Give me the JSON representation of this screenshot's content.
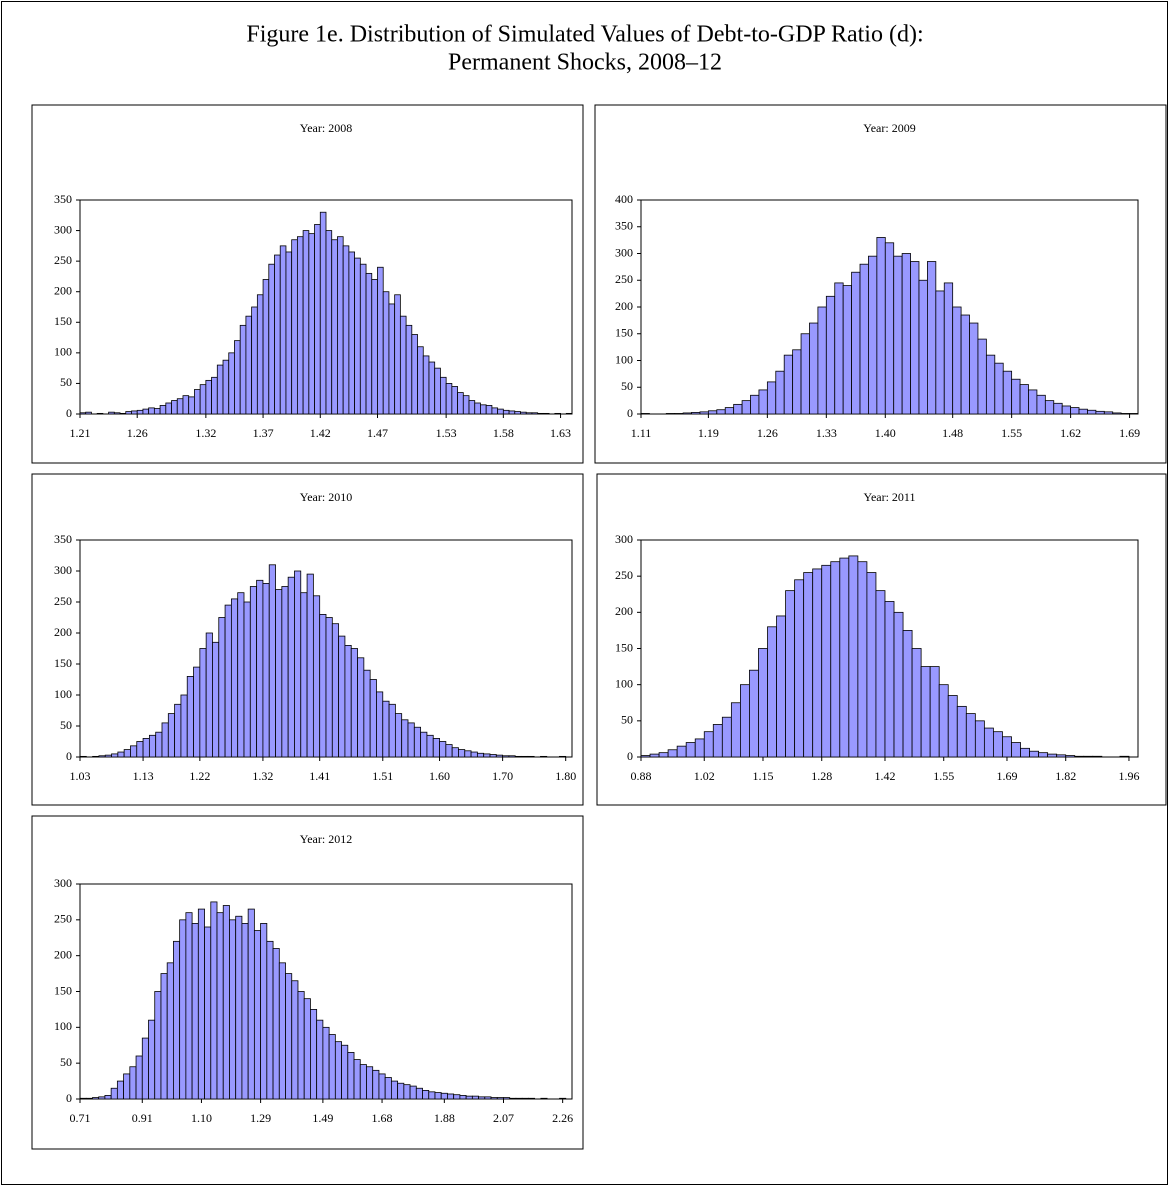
{
  "title": "Figure 1e. Distribution of Simulated Values of Debt-to-GDP Ratio (d):",
  "subtitle": "Permanent Shocks, 2008–12",
  "chart_data": [
    {
      "type": "histogram",
      "title": "Year: 2008",
      "color": "#9999ff",
      "bins": [
        1.21,
        1.215,
        1.22,
        1.225,
        1.23,
        1.235,
        1.24,
        1.245,
        1.25,
        1.255,
        1.26,
        1.265,
        1.27,
        1.275,
        1.28,
        1.285,
        1.29,
        1.295,
        1.3,
        1.305,
        1.31,
        1.315,
        1.32,
        1.325,
        1.33,
        1.335,
        1.34,
        1.345,
        1.35,
        1.355,
        1.36,
        1.365,
        1.37,
        1.375,
        1.38,
        1.385,
        1.39,
        1.395,
        1.4,
        1.405,
        1.41,
        1.415,
        1.42,
        1.425,
        1.43,
        1.435,
        1.44,
        1.445,
        1.45,
        1.455,
        1.46,
        1.465,
        1.47,
        1.475,
        1.48,
        1.485,
        1.49,
        1.495,
        1.5,
        1.505,
        1.51,
        1.515,
        1.52,
        1.525,
        1.53,
        1.535,
        1.54,
        1.545,
        1.55,
        1.555,
        1.56,
        1.565,
        1.57,
        1.575,
        1.58,
        1.585,
        1.59,
        1.595,
        1.6,
        1.605,
        1.61,
        1.615,
        1.62,
        1.625,
        1.63,
        1.635,
        1.64
      ],
      "values": [
        2,
        3,
        0,
        1,
        0,
        3,
        2,
        1,
        4,
        5,
        6,
        8,
        10,
        9,
        14,
        18,
        22,
        25,
        30,
        28,
        40,
        48,
        55,
        60,
        80,
        88,
        100,
        120,
        145,
        160,
        175,
        195,
        220,
        245,
        260,
        275,
        265,
        285,
        290,
        300,
        295,
        310,
        330,
        300,
        285,
        290,
        275,
        265,
        255,
        245,
        230,
        220,
        240,
        200,
        180,
        195,
        160,
        145,
        130,
        110,
        95,
        85,
        75,
        60,
        50,
        45,
        35,
        30,
        22,
        18,
        15,
        14,
        10,
        8,
        6,
        5,
        4,
        3,
        2,
        2,
        1,
        1,
        0,
        1,
        0,
        1
      ],
      "xlim": [
        1.21,
        1.64
      ],
      "xticks": [
        1.21,
        1.26,
        1.32,
        1.37,
        1.42,
        1.47,
        1.53,
        1.58,
        1.63
      ],
      "ylim": [
        0,
        350
      ],
      "yticks": [
        0,
        50,
        100,
        150,
        200,
        250,
        300,
        350
      ]
    },
    {
      "type": "histogram",
      "title": "Year: 2009",
      "color": "#9999ff",
      "bins": [
        1.11,
        1.12,
        1.13,
        1.14,
        1.15,
        1.16,
        1.17,
        1.18,
        1.19,
        1.2,
        1.21,
        1.22,
        1.23,
        1.24,
        1.25,
        1.26,
        1.27,
        1.28,
        1.29,
        1.3,
        1.31,
        1.32,
        1.33,
        1.34,
        1.35,
        1.36,
        1.37,
        1.38,
        1.39,
        1.4,
        1.41,
        1.42,
        1.43,
        1.44,
        1.45,
        1.46,
        1.47,
        1.48,
        1.49,
        1.5,
        1.51,
        1.52,
        1.53,
        1.54,
        1.55,
        1.56,
        1.57,
        1.58,
        1.59,
        1.6,
        1.61,
        1.62,
        1.63,
        1.64,
        1.65,
        1.66,
        1.67,
        1.68,
        1.69,
        1.7
      ],
      "values": [
        1,
        0,
        0,
        1,
        1,
        2,
        3,
        4,
        6,
        8,
        12,
        18,
        25,
        35,
        45,
        60,
        80,
        110,
        120,
        150,
        170,
        200,
        220,
        245,
        240,
        265,
        280,
        295,
        330,
        320,
        295,
        300,
        285,
        250,
        285,
        230,
        245,
        200,
        185,
        170,
        140,
        110,
        95,
        80,
        65,
        55,
        45,
        35,
        25,
        20,
        15,
        12,
        9,
        7,
        5,
        4,
        2,
        1,
        1
      ],
      "xlim": [
        1.11,
        1.7
      ],
      "xticks": [
        1.11,
        1.19,
        1.26,
        1.33,
        {
          "value": 1.4,
          "label": "1.40"
        },
        1.48,
        1.55,
        1.62,
        1.69
      ],
      "ylim": [
        0,
        400
      ],
      "yticks": [
        0,
        50,
        100,
        150,
        200,
        250,
        300,
        350,
        400
      ]
    },
    {
      "type": "histogram",
      "title": "Year: 2010",
      "color": "#9999ff",
      "bins": [
        1.03,
        1.04,
        1.05,
        1.06,
        1.07,
        1.08,
        1.09,
        1.1,
        1.11,
        1.12,
        1.13,
        1.14,
        1.15,
        1.16,
        1.17,
        1.18,
        1.19,
        1.2,
        1.21,
        1.22,
        1.23,
        1.24,
        1.25,
        1.26,
        1.27,
        1.28,
        1.29,
        1.3,
        1.31,
        1.32,
        1.33,
        1.34,
        1.35,
        1.36,
        1.37,
        1.38,
        1.39,
        1.4,
        1.41,
        1.42,
        1.43,
        1.44,
        1.45,
        1.46,
        1.47,
        1.48,
        1.49,
        1.5,
        1.51,
        1.52,
        1.53,
        1.54,
        1.55,
        1.56,
        1.57,
        1.58,
        1.59,
        1.6,
        1.61,
        1.62,
        1.63,
        1.64,
        1.65,
        1.66,
        1.67,
        1.68,
        1.69,
        1.7,
        1.71,
        1.72,
        1.73,
        1.74,
        1.75,
        1.76,
        1.77,
        1.78,
        1.79,
        1.8,
        1.81
      ],
      "values": [
        1,
        0,
        1,
        2,
        3,
        5,
        8,
        12,
        18,
        25,
        30,
        35,
        40,
        55,
        70,
        85,
        100,
        130,
        145,
        175,
        200,
        185,
        225,
        245,
        255,
        265,
        250,
        275,
        285,
        280,
        310,
        270,
        275,
        290,
        300,
        265,
        295,
        260,
        230,
        225,
        215,
        195,
        180,
        175,
        160,
        140,
        125,
        105,
        90,
        85,
        70,
        60,
        55,
        48,
        40,
        35,
        30,
        25,
        20,
        15,
        12,
        10,
        8,
        6,
        5,
        4,
        3,
        2,
        2,
        1,
        1,
        1,
        0,
        1,
        0,
        0,
        1,
        0
      ],
      "xlim": [
        1.03,
        1.81
      ],
      "xticks": [
        1.03,
        1.13,
        1.22,
        1.32,
        1.41,
        1.51,
        {
          "value": 1.6,
          "label": "1.60"
        },
        {
          "value": 1.7,
          "label": "1.70"
        },
        {
          "value": 1.8,
          "label": "1.80"
        }
      ],
      "ylim": [
        0,
        350
      ],
      "yticks": [
        0,
        50,
        100,
        150,
        200,
        250,
        300,
        350
      ]
    },
    {
      "type": "histogram",
      "title": "Year: 2011",
      "color": "#9999ff",
      "bins": [
        0.88,
        0.9,
        0.92,
        0.94,
        0.96,
        0.98,
        1,
        1.02,
        1.04,
        1.06,
        1.08,
        1.1,
        1.12,
        1.14,
        1.16,
        1.18,
        1.2,
        1.22,
        1.24,
        1.26,
        1.28,
        1.3,
        1.32,
        1.34,
        1.36,
        1.38,
        1.4,
        1.42,
        1.44,
        1.46,
        1.48,
        1.5,
        1.52,
        1.54,
        1.56,
        1.58,
        1.6,
        1.62,
        1.64,
        1.66,
        1.68,
        1.7,
        1.72,
        1.74,
        1.76,
        1.78,
        1.8,
        1.82,
        1.84,
        1.86,
        1.88,
        1.9,
        1.92,
        1.94,
        1.96,
        1.98
      ],
      "values": [
        2,
        4,
        6,
        10,
        15,
        20,
        25,
        35,
        45,
        55,
        75,
        100,
        120,
        150,
        180,
        195,
        230,
        245,
        255,
        260,
        265,
        270,
        275,
        278,
        270,
        255,
        230,
        215,
        200,
        175,
        150,
        125,
        125,
        100,
        85,
        70,
        60,
        50,
        40,
        35,
        28,
        20,
        12,
        8,
        6,
        4,
        3,
        2,
        1,
        1,
        1,
        0,
        0,
        1,
        0
      ],
      "xlim": [
        0.88,
        1.98
      ],
      "xticks": [
        0.88,
        1.02,
        1.15,
        1.28,
        1.42,
        1.55,
        1.69,
        1.82,
        1.96
      ],
      "ylim": [
        0,
        300
      ],
      "yticks": [
        0,
        50,
        100,
        150,
        200,
        250,
        300
      ]
    },
    {
      "type": "histogram",
      "title": "Year: 2012",
      "color": "#9999ff",
      "bins": [
        0.71,
        0.73,
        0.75,
        0.77,
        0.79,
        0.81,
        0.83,
        0.85,
        0.87,
        0.89,
        0.91,
        0.93,
        0.95,
        0.97,
        0.99,
        1.01,
        1.03,
        1.05,
        1.07,
        1.09,
        1.11,
        1.13,
        1.15,
        1.17,
        1.19,
        1.21,
        1.23,
        1.25,
        1.27,
        1.29,
        1.31,
        1.33,
        1.35,
        1.37,
        1.39,
        1.41,
        1.43,
        1.45,
        1.47,
        1.49,
        1.51,
        1.53,
        1.55,
        1.57,
        1.59,
        1.61,
        1.63,
        1.65,
        1.67,
        1.69,
        1.71,
        1.73,
        1.75,
        1.77,
        1.79,
        1.81,
        1.83,
        1.85,
        1.87,
        1.89,
        1.91,
        1.93,
        1.95,
        1.97,
        1.99,
        2.01,
        2.03,
        2.05,
        2.07,
        2.09,
        2.11,
        2.13,
        2.15,
        2.17,
        2.19,
        2.21,
        2.23,
        2.25,
        2.27,
        2.29
      ],
      "values": [
        1,
        1,
        2,
        3,
        5,
        15,
        25,
        35,
        45,
        60,
        85,
        110,
        150,
        175,
        190,
        220,
        250,
        260,
        245,
        265,
        240,
        275,
        260,
        270,
        250,
        255,
        245,
        265,
        235,
        245,
        220,
        210,
        190,
        175,
        165,
        150,
        140,
        125,
        110,
        100,
        90,
        80,
        75,
        65,
        55,
        48,
        45,
        40,
        35,
        30,
        25,
        22,
        20,
        18,
        15,
        12,
        10,
        9,
        8,
        7,
        6,
        5,
        4,
        4,
        3,
        3,
        2,
        2,
        2,
        1,
        1,
        1,
        1,
        0,
        1,
        0,
        0,
        1,
        0
      ],
      "xlim": [
        0.71,
        2.29
      ],
      "xticks": [
        0.71,
        0.91,
        {
          "value": 1.1,
          "label": "1.10"
        },
        1.29,
        1.49,
        1.68,
        1.88,
        2.07,
        2.26
      ],
      "ylim": [
        0,
        300
      ],
      "yticks": [
        0,
        50,
        100,
        150,
        200,
        250,
        300
      ]
    }
  ]
}
